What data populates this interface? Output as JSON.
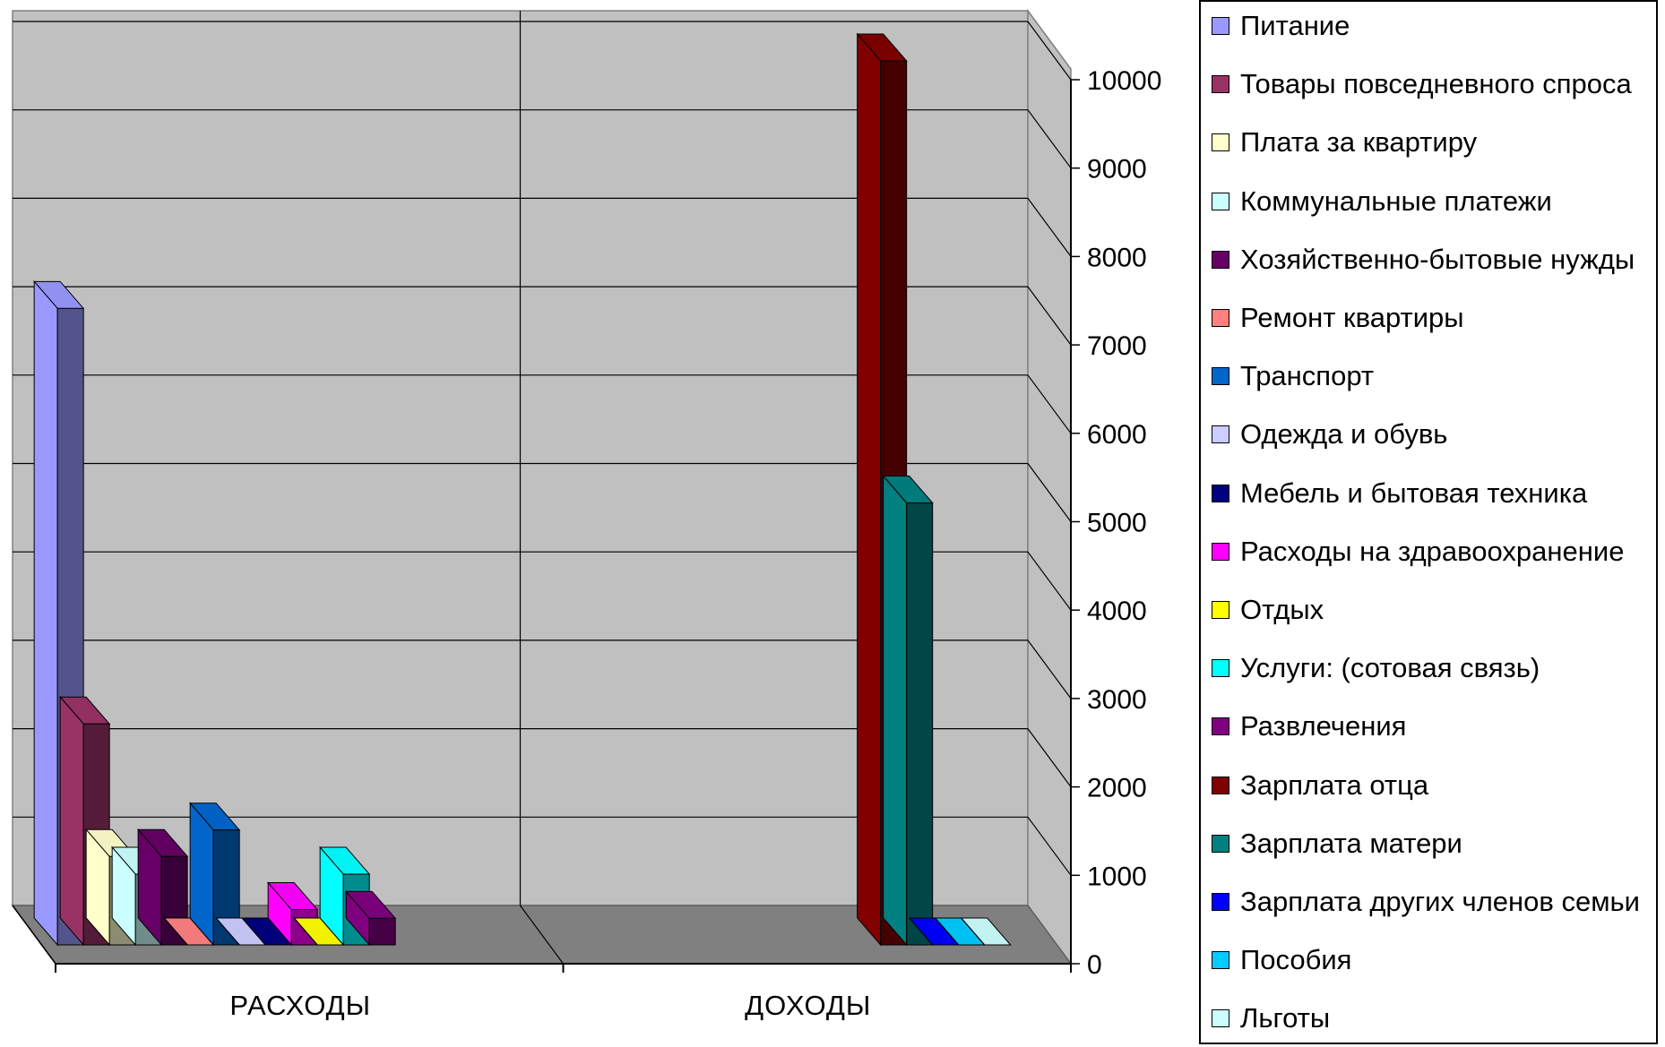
{
  "chart_data": {
    "type": "bar",
    "categories": [
      "РАСХОДЫ",
      "ДОХОДЫ"
    ],
    "ylim": [
      0,
      10000
    ],
    "y_ticks": [
      "0",
      "1000",
      "2000",
      "3000",
      "4000",
      "5000",
      "6000",
      "7000",
      "8000",
      "9000",
      "10000"
    ],
    "grid": true,
    "legend_position": "right",
    "series": [
      {
        "name": "Питание",
        "color": "#9999FF",
        "values": [
          7200,
          0
        ]
      },
      {
        "name": "Товары повседневного спроса",
        "color": "#993366",
        "values": [
          2500,
          0
        ]
      },
      {
        "name": "Плата за квартиру",
        "color": "#FFFFCC",
        "values": [
          1000,
          0
        ]
      },
      {
        "name": "Коммунальные платежи",
        "color": "#CCFFFF",
        "values": [
          800,
          0
        ]
      },
      {
        "name": "Хозяйственно-бытовые нужды",
        "color": "#660066",
        "values": [
          1000,
          0
        ]
      },
      {
        "name": "Ремонт квартиры",
        "color": "#FF8080",
        "values": [
          0,
          0
        ]
      },
      {
        "name": "Транспорт",
        "color": "#0066CC",
        "values": [
          1300,
          0
        ]
      },
      {
        "name": "Одежда и обувь",
        "color": "#CCCCFF",
        "values": [
          0,
          0
        ]
      },
      {
        "name": "Мебель и бытовая техника",
        "color": "#000080",
        "values": [
          0,
          0
        ]
      },
      {
        "name": "Расходы на здравоохранение",
        "color": "#FF00FF",
        "values": [
          400,
          0
        ]
      },
      {
        "name": "Отдых",
        "color": "#FFFF00",
        "values": [
          0,
          0
        ]
      },
      {
        "name": "Услуги: (сотовая связь)",
        "color": "#00FFFF",
        "values": [
          800,
          0
        ]
      },
      {
        "name": "Развлечения",
        "color": "#800080",
        "values": [
          300,
          0
        ]
      },
      {
        "name": "Зарплата отца",
        "color": "#800000",
        "values": [
          0,
          10000
        ]
      },
      {
        "name": "Зарплата матери",
        "color": "#008080",
        "values": [
          0,
          5000
        ]
      },
      {
        "name": "Зарплата других членов семьи",
        "color": "#0000FF",
        "values": [
          0,
          0
        ]
      },
      {
        "name": "Пособия",
        "color": "#00CCFF",
        "values": [
          0,
          0
        ]
      },
      {
        "name": "Льготы",
        "color": "#CCFFFF",
        "values": [
          0,
          0
        ]
      }
    ]
  }
}
